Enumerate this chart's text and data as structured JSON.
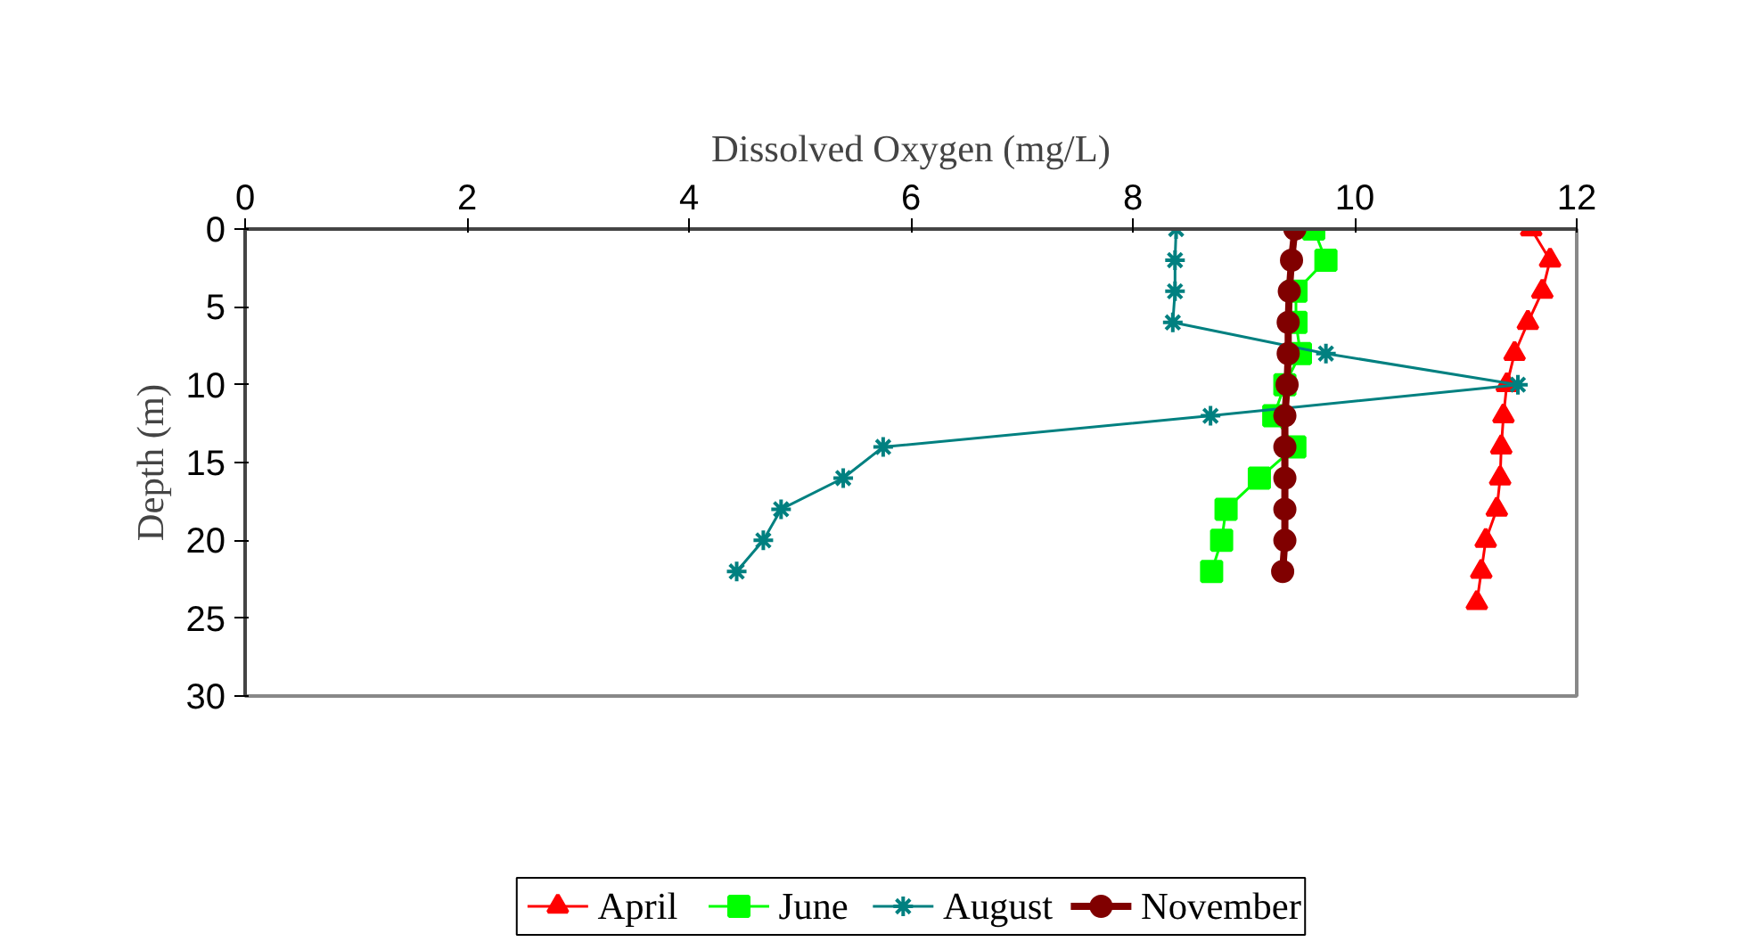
{
  "chart_data": {
    "type": "line",
    "xlabel": "Dissolved Oxygen (mg/L)",
    "ylabel": "Depth (m)",
    "xlim": [
      0,
      12
    ],
    "xticks": [
      0,
      2,
      4,
      6,
      8,
      10,
      12
    ],
    "ylim": [
      30,
      0
    ],
    "yticks": [
      0,
      5,
      10,
      15,
      20,
      25,
      30
    ],
    "grid": false,
    "legend": "bottom",
    "line_style": "solid",
    "series": [
      {
        "name": "April",
        "color": "#ff0000",
        "marker": "triangle",
        "x": [
          11.59,
          11.76,
          11.69,
          11.56,
          11.44,
          11.37,
          11.34,
          11.32,
          11.31,
          11.28,
          11.18,
          11.14,
          11.1
        ],
        "values": [
          0,
          2,
          4,
          6,
          8,
          10,
          12,
          14,
          16,
          18,
          20,
          22,
          24
        ]
      },
      {
        "name": "June",
        "color": "#00ff00",
        "marker": "square",
        "x": [
          9.63,
          9.74,
          9.47,
          9.47,
          9.51,
          9.37,
          9.27,
          9.46,
          9.14,
          8.84,
          8.8,
          8.71
        ],
        "values": [
          0,
          2,
          4,
          6,
          8,
          10,
          12,
          14,
          16,
          18,
          20,
          22
        ]
      },
      {
        "name": "August",
        "color": "#008080",
        "marker": "cross",
        "x": [
          8.39,
          8.38,
          8.38,
          8.36,
          9.74,
          11.47,
          8.7,
          5.75,
          5.39,
          4.83,
          4.67,
          4.43
        ],
        "values": [
          0,
          2,
          4,
          6,
          8,
          10,
          12,
          14,
          16,
          18,
          20,
          22
        ]
      },
      {
        "name": "November",
        "color": "#800000",
        "marker": "circle",
        "x": [
          9.46,
          9.43,
          9.41,
          9.4,
          9.4,
          9.39,
          9.37,
          9.37,
          9.37,
          9.37,
          9.37,
          9.35
        ],
        "values": [
          0,
          2,
          4,
          6,
          8,
          10,
          12,
          14,
          16,
          18,
          20,
          22
        ]
      }
    ]
  }
}
